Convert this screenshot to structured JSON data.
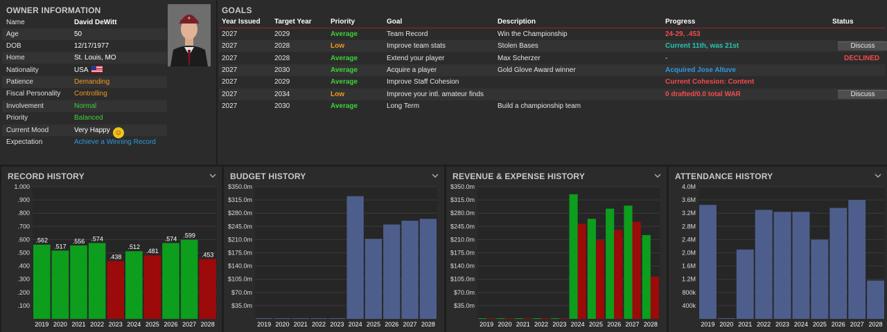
{
  "owner": {
    "title": "OWNER INFORMATION",
    "rows": [
      {
        "label": "Name",
        "value": "David DeWitt"
      },
      {
        "label": "Age",
        "value": "50"
      },
      {
        "label": "DOB",
        "value": "12/17/1977"
      },
      {
        "label": "Home",
        "value": "St. Louis, MO"
      },
      {
        "label": "Nationality",
        "value": "USA"
      },
      {
        "label": "Patience",
        "value": "Demanding"
      },
      {
        "label": "Fiscal Personality",
        "value": "Controlling"
      },
      {
        "label": "Involvement",
        "value": "Normal"
      },
      {
        "label": "Priority",
        "value": "Balanced"
      },
      {
        "label": "Current Mood",
        "value": "Very Happy"
      },
      {
        "label": "Expectation",
        "value": "Achieve a Winning Record"
      }
    ]
  },
  "goals": {
    "title": "GOALS",
    "headers": {
      "year_issued": "Year Issued",
      "target_year": "Target Year",
      "priority": "Priority",
      "goal": "Goal",
      "description": "Description",
      "progress": "Progress",
      "status": "Status"
    },
    "rows": [
      {
        "year_issued": "2027",
        "target_year": "2029",
        "priority": "Average",
        "goal": "Team Record",
        "description": "Win the Championship",
        "progress": "24-29, .453",
        "status": ""
      },
      {
        "year_issued": "2027",
        "target_year": "2028",
        "priority": "Low",
        "goal": "Improve team stats",
        "description": "Stolen Bases",
        "progress": "Current 11th, was 21st",
        "status": "Discuss"
      },
      {
        "year_issued": "2027",
        "target_year": "2028",
        "priority": "Average",
        "goal": "Extend your player",
        "description": "Max Scherzer",
        "progress": "-",
        "status": "DECLINED"
      },
      {
        "year_issued": "2027",
        "target_year": "2030",
        "priority": "Average",
        "goal": "Acquire a player",
        "description": "Gold Glove Award winner",
        "progress": "Acquired Jose Altuve",
        "status": ""
      },
      {
        "year_issued": "2027",
        "target_year": "2029",
        "priority": "Average",
        "goal": "Improve Staff Cohesion",
        "description": "",
        "progress": "Current Cohesion: Content",
        "status": ""
      },
      {
        "year_issued": "2027",
        "target_year": "2034",
        "priority": "Low",
        "goal": "Improve your intl. amateur finds",
        "description": "",
        "progress": "0 drafted/0.0 total WAR",
        "status": "Discuss"
      },
      {
        "year_issued": "2027",
        "target_year": "2030",
        "priority": "Average",
        "goal": "Long Term",
        "description": "Build a championship team",
        "progress": "",
        "status": ""
      }
    ]
  },
  "colors": {
    "bar_green": "#0c9e1c",
    "bar_red": "#9c0a0a",
    "bar_blue": "#4e5e8c",
    "priority_average": "#3fd13a",
    "priority_low": "#f29a1f",
    "progress_red": "#f24c4c",
    "progress_teal": "#23c7b0",
    "progress_blue": "#2e9ae0",
    "status_declined": "#f24c4c"
  },
  "chart_data": [
    {
      "type": "bar",
      "title": "RECORD HISTORY",
      "categories": [
        "2019",
        "2020",
        "2021",
        "2022",
        "2023",
        "2024",
        "2025",
        "2026",
        "2027",
        "2028"
      ],
      "values": [
        0.562,
        0.517,
        0.556,
        0.574,
        0.438,
        0.512,
        0.481,
        0.574,
        0.599,
        0.453
      ],
      "data_labels": [
        ".562",
        ".517",
        ".556",
        ".574",
        ".438",
        ".512",
        ".481",
        ".574",
        ".599",
        ".453"
      ],
      "bar_colors": [
        "green",
        "green",
        "green",
        "green",
        "red",
        "green",
        "red",
        "green",
        "green",
        "red"
      ],
      "ylim": [
        0,
        1.0
      ],
      "yticks": [
        ".100",
        ".200",
        ".300",
        ".400",
        ".500",
        ".600",
        ".700",
        ".800",
        ".900",
        "1.000"
      ]
    },
    {
      "type": "bar",
      "title": "BUDGET HISTORY",
      "categories": [
        "2019",
        "2020",
        "2021",
        "2022",
        "2023",
        "2024",
        "2025",
        "2026",
        "2027",
        "2028"
      ],
      "values": [
        0,
        0,
        0,
        0,
        0,
        325,
        212,
        250,
        260,
        265
      ],
      "ylim": [
        0,
        350
      ],
      "yticks": [
        "$35.0m",
        "$70.0m",
        "$105.0m",
        "$140.0m",
        "$175.0m",
        "$210.0m",
        "$245.0m",
        "$280.0m",
        "$315.0m",
        "$350.0m"
      ]
    },
    {
      "type": "bar",
      "title": "REVENUE & EXPENSE HISTORY",
      "categories": [
        "2019",
        "2020",
        "2021",
        "2022",
        "2023",
        "2024",
        "2025",
        "2026",
        "2027",
        "2028"
      ],
      "series": [
        {
          "values": [
            0,
            0,
            0,
            0,
            0,
            330,
            265,
            292,
            300,
            222
          ]
        },
        {
          "values": [
            0,
            0,
            0,
            0,
            0,
            252,
            208,
            236,
            257,
            112
          ]
        }
      ],
      "ylim": [
        0,
        350
      ],
      "yticks": [
        "$35.0m",
        "$70.0m",
        "$105.0m",
        "$140.0m",
        "$175.0m",
        "$210.0m",
        "$245.0m",
        "$280.0m",
        "$315.0m",
        "$350.0m"
      ]
    },
    {
      "type": "bar",
      "title": "ATTENDANCE HISTORY",
      "categories": [
        "2019",
        "2020",
        "2021",
        "2022",
        "2023",
        "2024",
        "2025",
        "2026",
        "2027",
        "2028"
      ],
      "values": [
        3.45,
        0,
        2.1,
        3.3,
        3.24,
        3.24,
        2.4,
        3.36,
        3.6,
        1.16
      ],
      "ylim": [
        0,
        4.0
      ],
      "yticks": [
        "400k",
        "800k",
        "1.2M",
        "1.6M",
        "2.0M",
        "2.4M",
        "2.8M",
        "3.2M",
        "3.6M",
        "4.0M"
      ]
    }
  ]
}
